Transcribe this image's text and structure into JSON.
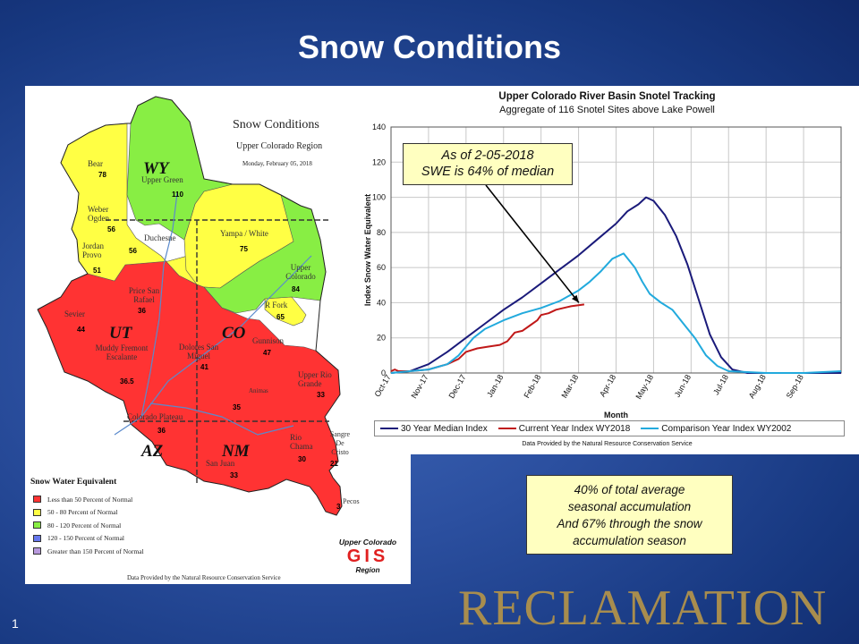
{
  "slide": {
    "title": "Snow Conditions",
    "number": "1",
    "brand": "RECLAMATION"
  },
  "colors": {
    "red": "#ff3333",
    "yellow": "#ffff44",
    "green": "#88ee44",
    "median": "#1a1a7a",
    "current": "#c01818",
    "comparison": "#22aadd"
  },
  "map": {
    "title": "Snow Conditions",
    "subtitle": "Upper Colorado Region",
    "date": "Monday, February 05, 2018",
    "states": [
      "WY",
      "UT",
      "CO",
      "AZ",
      "NM"
    ],
    "basins": [
      {
        "name": "Bear",
        "value": "78",
        "color": "yellow"
      },
      {
        "name": "Upper Green",
        "value": "110",
        "color": "green"
      },
      {
        "name": "Weber Ogden",
        "value": "56",
        "color": "yellow"
      },
      {
        "name": "Jordan Provo",
        "value": "51",
        "color": "yellow"
      },
      {
        "name": "Duchesne",
        "value": "56",
        "color": "yellow"
      },
      {
        "name": "Yampa / White",
        "value": "75",
        "color": "yellow"
      },
      {
        "name": "Upper Colorado",
        "value": "84",
        "color": "green"
      },
      {
        "name": "R Fork",
        "value": "65",
        "color": "yellow"
      },
      {
        "name": "Price San Rafael",
        "value": "36",
        "color": "red"
      },
      {
        "name": "Sevier",
        "value": "44",
        "color": "red"
      },
      {
        "name": "Muddy Fremont Escalante",
        "value": "36.5",
        "color": "red"
      },
      {
        "name": "Dolores San Miguel",
        "value": "41",
        "color": "red"
      },
      {
        "name": "Gunnison",
        "value": "47",
        "color": "red"
      },
      {
        "name": "Upper Rio Grande",
        "value": "33",
        "color": "red"
      },
      {
        "name": "Animas",
        "value": "35",
        "color": "red"
      },
      {
        "name": "Colorado Plateau",
        "value": "36",
        "color": "red"
      },
      {
        "name": "Rio Chama",
        "value": "30",
        "color": "red"
      },
      {
        "name": "Sangre De Cristo",
        "value": "21",
        "color": "red"
      },
      {
        "name": "San Juan",
        "value": "33",
        "color": "red"
      },
      {
        "name": "Pecos",
        "value": "3",
        "color": "red"
      }
    ],
    "legend_title": "Snow Water Equivalent",
    "legend": [
      {
        "label": "Less than 50 Percent of Normal",
        "color": "#ff3333"
      },
      {
        "label": "50 - 80 Percent of Normal",
        "color": "#ffff44"
      },
      {
        "label": "80 - 120 Percent of Normal",
        "color": "#88ee44"
      },
      {
        "label": "120 - 150 Percent of Normal",
        "color": "#6677ee"
      },
      {
        "label": "Greater than 150 Percent of Normal",
        "color": "#b899dd"
      }
    ],
    "logo_top": "Upper Colorado",
    "logo_mid": "GIS",
    "logo_bottom": "Region",
    "credit": "Data Provided by the Natural Resource Conservation Service"
  },
  "callout": {
    "line1": "As of 2-05-2018",
    "line2": "SWE is 64% of median"
  },
  "note": {
    "line1": "40% of total average",
    "line2": "seasonal accumulation",
    "line3": "And 67% through the snow",
    "line4": "accumulation season"
  },
  "chart_data": {
    "type": "line",
    "title": "Upper Colorado River Basin Snotel Tracking",
    "subtitle": "Aggregate of 116 Snotel Sites above Lake Powell",
    "xlabel": "Month",
    "ylabel": "Index Snow Water Equivalent",
    "ylim": [
      0,
      140
    ],
    "yticks": [
      0,
      20,
      40,
      60,
      80,
      100,
      120,
      140
    ],
    "x_ticks": [
      "Oct-17",
      "Nov-17",
      "Dec-17",
      "Jan-18",
      "Feb-18",
      "Mar-18",
      "Apr-18",
      "May-18",
      "Jun-18",
      "Jul-18",
      "Aug-18",
      "Sep-18"
    ],
    "grid": true,
    "legend_position": "bottom",
    "credit": "Data Provided by the Natural Resource Conservation Service",
    "series": [
      {
        "name": "30 Year Median Index",
        "color": "#1a1a7a",
        "x": [
          0,
          0.5,
          1,
          1.5,
          2,
          2.5,
          3,
          3.5,
          4,
          4.5,
          5,
          5.5,
          6,
          6.3,
          6.6,
          6.8,
          7,
          7.3,
          7.6,
          7.9,
          8.2,
          8.5,
          8.8,
          9.1,
          9.5,
          10,
          11,
          12
        ],
        "y": [
          0,
          1,
          5,
          12,
          20,
          28,
          36,
          43,
          51,
          59,
          67,
          76,
          85,
          92,
          96,
          100,
          98,
          90,
          78,
          62,
          42,
          22,
          9,
          2,
          0,
          0,
          0,
          0
        ]
      },
      {
        "name": "Current Year Index WY2018",
        "color": "#c01818",
        "x": [
          0,
          0.1,
          0.2,
          0.5,
          1,
          1.5,
          1.8,
          2,
          2.3,
          2.6,
          2.9,
          3.1,
          3.3,
          3.5,
          3.7,
          3.9,
          4,
          4.2,
          4.4,
          4.6,
          4.8,
          5.15
        ],
        "y": [
          1,
          2,
          1,
          1,
          2,
          5,
          8,
          12,
          14,
          15,
          16,
          18,
          23,
          24,
          27,
          30,
          33,
          34,
          36,
          37,
          38,
          39
        ]
      },
      {
        "name": "Comparison Year Index WY2002",
        "color": "#22aadd",
        "x": [
          0,
          0.5,
          1,
          1.5,
          1.8,
          2,
          2.2,
          2.5,
          3,
          3.5,
          4,
          4.5,
          5,
          5.3,
          5.6,
          5.9,
          6.2,
          6.5,
          6.7,
          6.9,
          7.2,
          7.5,
          7.8,
          8.1,
          8.4,
          8.7,
          9,
          10,
          11,
          12
        ],
        "y": [
          0,
          1,
          2,
          5,
          10,
          15,
          20,
          25,
          30,
          34,
          37,
          41,
          47,
          52,
          58,
          65,
          68,
          60,
          52,
          45,
          40,
          36,
          28,
          20,
          10,
          4,
          1,
          0,
          0,
          1
        ]
      }
    ]
  }
}
